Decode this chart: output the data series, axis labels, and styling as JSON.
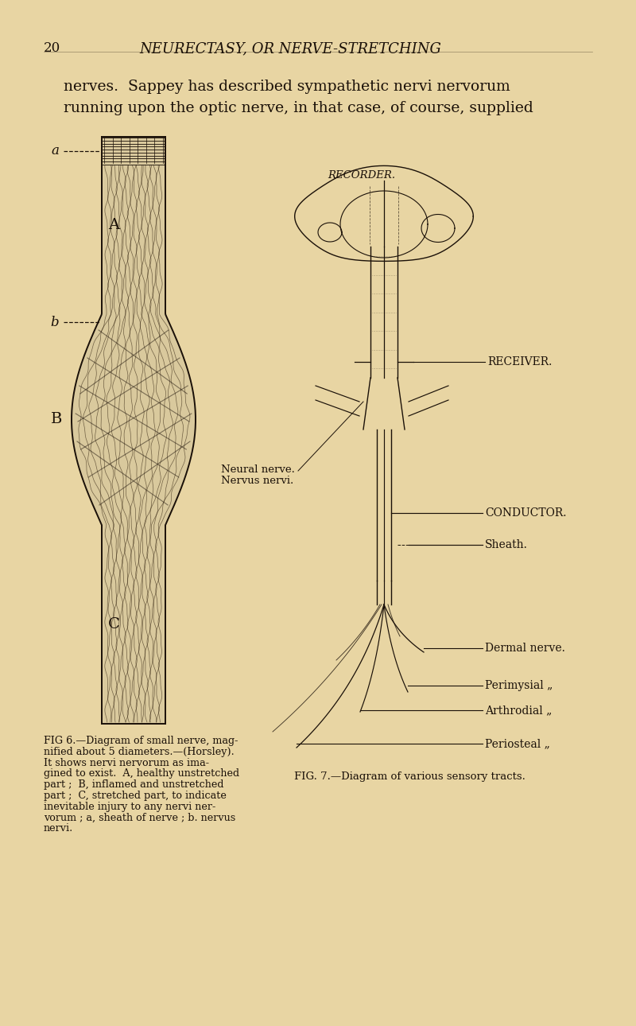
{
  "bg_color": "#e8d5a3",
  "text_color": "#1a1008",
  "title_text": "NEURECTASY, OR NERVE-STRETCHING",
  "page_number": "20",
  "header_text1": "nerves.  Sappey has described sympathetic nervi nervorum",
  "header_text2": "running upon the optic nerve, in that case, of course, supplied",
  "fig6_caption_lines": [
    "FIG 6.—Diagram of small nerve, mag-",
    "nified about 5 diameters.—(Horsley).",
    "It shows nervi nervorum as ima-",
    "gined to exist.  A, healthy unstretched",
    "part ;  B, inflamed and unstretched",
    "part ;  C, stretched part, to indicate",
    "inevitable injury to any nervi ner-",
    "vorum ; a, sheath of nerve ; b. nervus",
    "nervi."
  ],
  "fig7_caption": "FIG. 7.—Diagram of various sensory tracts.",
  "neural_nerve_label1": "Neural nerve.",
  "neural_nerve_label2": "Nervus nervi.",
  "receiver_label": "RECEIVER.",
  "conductor_label": "CONDUCTOR.",
  "sheath_label": "Sheath.",
  "dermal_label": "Dermal nerve.",
  "perimysial_label": "Perimysial „",
  "arthrodial_label": "Arthrodial „",
  "periosteal_label": "Periosteal „",
  "label_a": "a",
  "label_b": "b",
  "label_A": "A",
  "label_B": "B",
  "label_C": "C",
  "recorder_text": "RECORDER."
}
